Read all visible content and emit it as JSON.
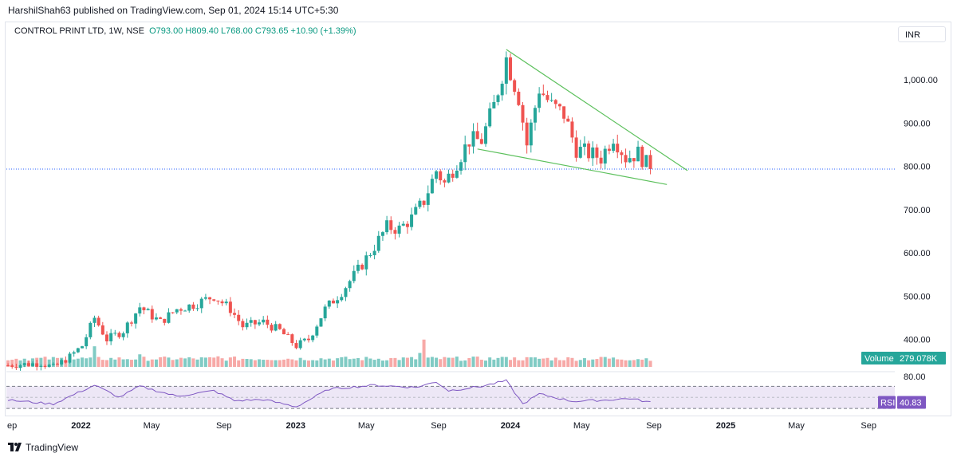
{
  "header": {
    "published": "HarshilShah63 published on TradingView.com, Sep 01, 2024 15:14 UTC+5:30"
  },
  "legend": {
    "symbol": "CONTROL PRINT LTD, 1W, NSE",
    "open": "O793.00",
    "high": "H809.40",
    "low": "L768.00",
    "close": "C793.65",
    "change": "+10.90 (+1.39%)"
  },
  "currency": "INR",
  "footer": {
    "brand": "TradingView"
  },
  "colors": {
    "up": "#26a69a",
    "down": "#ef5350",
    "up_volume": "#80cbc4",
    "down_volume": "#f7a9a7",
    "rsi_line": "#7e57c2",
    "rsi_band": "#ede7f6",
    "trendline": "#5cc05c",
    "price_line": "#2962ff"
  },
  "chart_data": {
    "type": "candlestick",
    "interval": "1W",
    "yaxis": {
      "ylim": [
        330,
        1080
      ],
      "ticks": [
        "400.00",
        "500.00",
        "600.00",
        "700.00",
        "800.00",
        "900.00",
        "1,000.00"
      ],
      "position": "right"
    },
    "xaxis": {
      "ticks": [
        "ep",
        "2022",
        "May",
        "Sep",
        "2023",
        "May",
        "Sep",
        "2024",
        "May",
        "Sep",
        "2025",
        "May",
        "Sep"
      ],
      "major": [
        "2022",
        "2023",
        "2024",
        "2025"
      ]
    },
    "last_price": 793.65,
    "volume": {
      "label": "Volume",
      "value": "279.078K"
    },
    "rsi": {
      "label": "RSI",
      "value": "40.83",
      "upper_label": "80.00",
      "upper": 70,
      "lower": 30,
      "value_num": 40.83
    },
    "trendlines": [
      {
        "from": [
          "2023-12-25",
          1070
        ],
        "to": [
          "2024-10-28",
          790
        ]
      },
      {
        "from": [
          "2023-11-06",
          840
        ],
        "to": [
          "2024-09-23",
          758
        ]
      }
    ],
    "weekly_close_keyframes": [
      [
        "2021-08-30",
        340
      ],
      [
        "2021-10-25",
        345
      ],
      [
        "2021-11-15",
        335
      ],
      [
        "2021-12-13",
        360
      ],
      [
        "2022-01-03",
        385
      ],
      [
        "2022-01-24",
        450
      ],
      [
        "2022-02-14",
        400
      ],
      [
        "2022-03-14",
        420
      ],
      [
        "2022-04-11",
        475
      ],
      [
        "2022-05-16",
        440
      ],
      [
        "2022-06-13",
        470
      ],
      [
        "2022-07-11",
        480
      ],
      [
        "2022-08-15",
        500
      ],
      [
        "2022-09-12",
        470
      ],
      [
        "2022-10-03",
        430
      ],
      [
        "2022-11-07",
        440
      ],
      [
        "2022-12-05",
        420
      ],
      [
        "2023-01-02",
        385
      ],
      [
        "2023-01-23",
        400
      ],
      [
        "2023-02-20",
        470
      ],
      [
        "2023-03-20",
        510
      ],
      [
        "2023-04-17",
        560
      ],
      [
        "2023-05-15",
        615
      ],
      [
        "2023-06-05",
        660
      ],
      [
        "2023-06-26",
        655
      ],
      [
        "2023-07-17",
        680
      ],
      [
        "2023-08-07",
        720
      ],
      [
        "2023-08-28",
        790
      ],
      [
        "2023-09-11",
        760
      ],
      [
        "2023-10-02",
        810
      ],
      [
        "2023-10-23",
        860
      ],
      [
        "2023-11-13",
        860
      ],
      [
        "2023-12-04",
        940
      ],
      [
        "2023-12-25",
        1050
      ],
      [
        "2024-01-15",
        960
      ],
      [
        "2024-01-29",
        850
      ],
      [
        "2024-02-19",
        980
      ],
      [
        "2024-03-11",
        940
      ],
      [
        "2024-04-01",
        920
      ],
      [
        "2024-04-22",
        840
      ],
      [
        "2024-05-13",
        830
      ],
      [
        "2024-06-03",
        820
      ],
      [
        "2024-06-24",
        870
      ],
      [
        "2024-07-15",
        820
      ],
      [
        "2024-08-05",
        830
      ],
      [
        "2024-08-26",
        794
      ]
    ],
    "rsi_keyframes": [
      [
        "2021-08-30",
        45
      ],
      [
        "2021-11-15",
        38
      ],
      [
        "2022-01-24",
        72
      ],
      [
        "2022-03-07",
        50
      ],
      [
        "2022-04-11",
        70
      ],
      [
        "2022-06-13",
        52
      ],
      [
        "2022-08-15",
        62
      ],
      [
        "2022-09-19",
        44
      ],
      [
        "2022-11-07",
        46
      ],
      [
        "2023-01-02",
        33
      ],
      [
        "2023-02-27",
        65
      ],
      [
        "2023-05-15",
        72
      ],
      [
        "2023-07-24",
        68
      ],
      [
        "2023-08-28",
        78
      ],
      [
        "2023-09-18",
        62
      ],
      [
        "2023-11-13",
        70
      ],
      [
        "2023-12-25",
        80
      ],
      [
        "2024-01-22",
        38
      ],
      [
        "2024-02-19",
        56
      ],
      [
        "2024-04-15",
        43
      ],
      [
        "2024-06-10",
        45
      ],
      [
        "2024-07-22",
        48
      ],
      [
        "2024-08-26",
        41
      ]
    ],
    "volume_spikes": [
      [
        "2022-01-24",
        2.6
      ],
      [
        "2022-04-11",
        1.4
      ],
      [
        "2022-08-22",
        1.1
      ],
      [
        "2023-08-07",
        3.6
      ],
      [
        "2023-07-31",
        1.6
      ],
      [
        "2023-12-25",
        1.0
      ],
      [
        "2024-06-10",
        1.0
      ]
    ]
  }
}
